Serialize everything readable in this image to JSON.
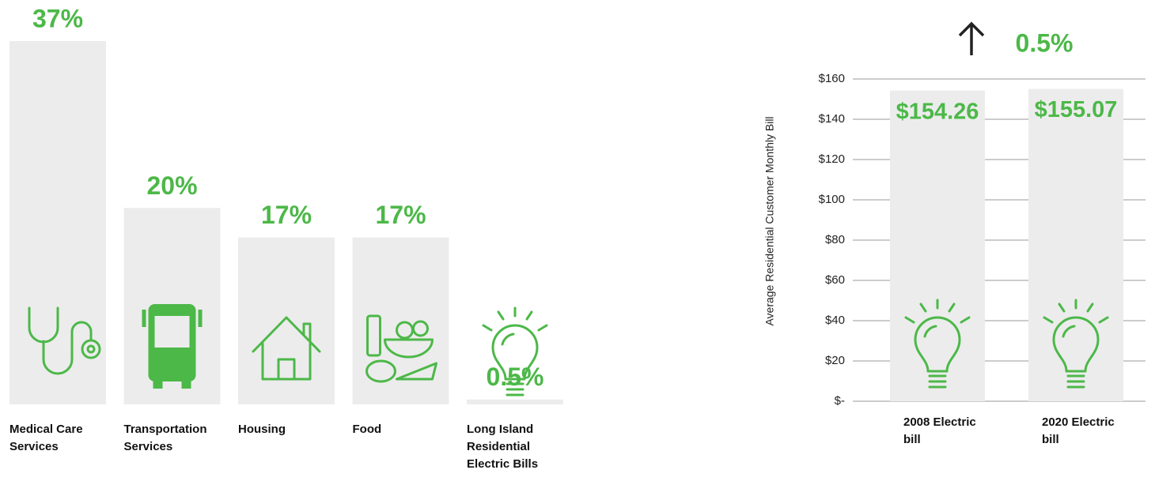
{
  "chart_data": [
    {
      "type": "bar",
      "categories": [
        "Medical Care Services",
        "Transportation Services",
        "Housing",
        "Food",
        "Long Island Residential Electric Bills"
      ],
      "values": [
        37,
        20,
        17,
        17,
        0.5
      ],
      "value_labels": [
        "37%",
        "20%",
        "17%",
        "17%",
        "0.5%"
      ],
      "color": "#ececec",
      "label_color": "#4cb848"
    },
    {
      "type": "bar",
      "ylabel": "Average Residential Customer Monthly Bill",
      "categories": [
        "2008 Electric bill",
        "2020 Electric bill"
      ],
      "values": [
        154.26,
        155.07
      ],
      "value_labels": [
        "$154.26",
        "$155.07"
      ],
      "color": "#ececec",
      "label_color": "#4cb848",
      "ylim": [
        0,
        160
      ],
      "yticks": [
        {
          "value": 0,
          "label": "$-"
        },
        {
          "value": 20,
          "label": "$20"
        },
        {
          "value": 40,
          "label": "$40"
        },
        {
          "value": 60,
          "label": "$60"
        },
        {
          "value": 80,
          "label": "$80"
        },
        {
          "value": 100,
          "label": "$100"
        },
        {
          "value": 120,
          "label": "$120"
        },
        {
          "value": 140,
          "label": "$140"
        },
        {
          "value": 160,
          "label": "$160"
        }
      ],
      "grid": true,
      "annotation": "0.5%"
    }
  ]
}
